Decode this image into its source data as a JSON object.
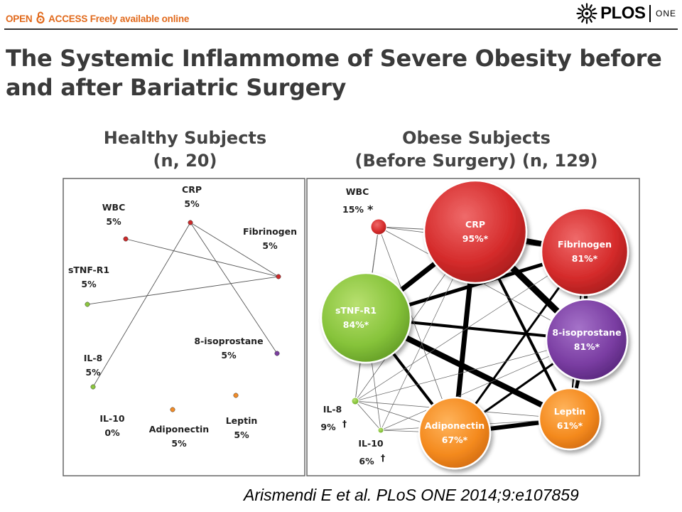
{
  "header": {
    "open_access_prefix": "OPEN",
    "open_access_suffix": "ACCESS Freely available online",
    "brand_name": "PLOS",
    "brand_journal": "ONE",
    "lock_icon": "open-lock-icon",
    "brand_icon": "plos-sunburst-logo"
  },
  "article": {
    "title": "The Systemic Inflammome of Severe Obesity before and after Bariatric Surgery"
  },
  "panels": {
    "healthy": {
      "title_line1": "Healthy Subjects",
      "title_line2": "(n, 20)",
      "nodes": [
        {
          "name": "WBC",
          "value": "5%",
          "color": "#cc2b2b"
        },
        {
          "name": "CRP",
          "value": "5%",
          "color": "#cc2b2b"
        },
        {
          "name": "Fibrinogen",
          "value": "5%",
          "color": "#cc2b2b"
        },
        {
          "name": "sTNF-R1",
          "value": "5%",
          "color": "#8cc63f"
        },
        {
          "name": "8-isoprostane",
          "value": "5%",
          "color": "#7b3fa0"
        },
        {
          "name": "IL-8",
          "value": "5%",
          "color": "#8cc63f"
        },
        {
          "name": "IL-10",
          "value": "0%",
          "color": "#8cc63f"
        },
        {
          "name": "Adiponectin",
          "value": "5%",
          "color": "#f28c28"
        },
        {
          "name": "Leptin",
          "value": "5%",
          "color": "#f28c28"
        }
      ]
    },
    "obese": {
      "title_line1": "Obese Subjects",
      "title_line2": "(Before Surgery) (n, 129)",
      "nodes": [
        {
          "name": "WBC",
          "value": "15%",
          "mark": "*",
          "color": "#d93030"
        },
        {
          "name": "CRP",
          "value": "95%*",
          "color": "#d93030"
        },
        {
          "name": "Fibrinogen",
          "value": "81%*",
          "color": "#d93030"
        },
        {
          "name": "sTNF-R1",
          "value": "84%*",
          "color": "#8cc63f"
        },
        {
          "name": "8-isoprostane",
          "value": "81%*",
          "color": "#7b3fa0"
        },
        {
          "name": "IL-8",
          "value": "9%",
          "mark": "†",
          "color": "#8cc63f"
        },
        {
          "name": "IL-10",
          "value": "6%",
          "mark": "†",
          "color": "#8cc63f"
        },
        {
          "name": "Adiponectin",
          "value": "67%*",
          "color": "#f28c28"
        },
        {
          "name": "Leptin",
          "value": "61%*",
          "color": "#f28c28"
        }
      ]
    }
  },
  "citation": "Arismendi E et al. PLoS ONE 2014;9:e107859"
}
